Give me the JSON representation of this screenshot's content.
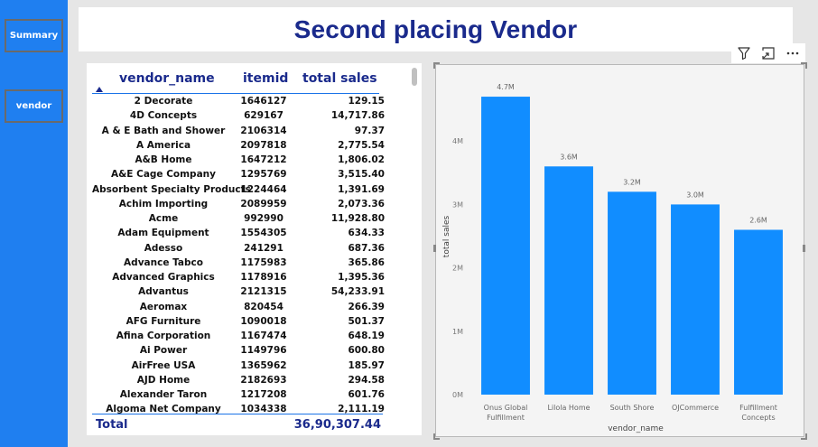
{
  "sidebar": {
    "buttons": [
      {
        "label": "Summary"
      },
      {
        "label": "vendor"
      }
    ]
  },
  "page_title": "Second placing Vendor",
  "table": {
    "columns": [
      "vendor_name",
      "itemid",
      "total sales"
    ],
    "rows": [
      [
        "2 Decorate",
        "1646127",
        "129.15"
      ],
      [
        "4D Concepts",
        "629167",
        "14,717.86"
      ],
      [
        "A & E Bath and Shower",
        "2106314",
        "97.37"
      ],
      [
        "A America",
        "2097818",
        "2,775.54"
      ],
      [
        "A&B Home",
        "1647212",
        "1,806.02"
      ],
      [
        "A&E Cage Company",
        "1295769",
        "3,515.40"
      ],
      [
        "Absorbent Specialty Products",
        "1224464",
        "1,391.69"
      ],
      [
        "Achim Importing",
        "2089959",
        "2,073.36"
      ],
      [
        "Acme",
        "992990",
        "11,928.80"
      ],
      [
        "Adam Equipment",
        "1554305",
        "634.33"
      ],
      [
        "Adesso",
        "241291",
        "687.36"
      ],
      [
        "Advance Tabco",
        "1175983",
        "365.86"
      ],
      [
        "Advanced Graphics",
        "1178916",
        "1,395.36"
      ],
      [
        "Advantus",
        "2121315",
        "54,233.91"
      ],
      [
        "Aeromax",
        "820454",
        "266.39"
      ],
      [
        "AFG Furniture",
        "1090018",
        "501.37"
      ],
      [
        "Afina Corporation",
        "1167474",
        "648.19"
      ],
      [
        "Ai Power",
        "1149796",
        "600.80"
      ],
      [
        "AirFree USA",
        "1365962",
        "185.97"
      ],
      [
        "AJD Home",
        "2182693",
        "294.58"
      ],
      [
        "Alexander Taron",
        "1217208",
        "601.76"
      ],
      [
        "Algoma Net Company",
        "1034338",
        "2,111.19"
      ]
    ],
    "total_label": "Total",
    "total_value": "36,90,307.44"
  },
  "toolbar": {
    "icons": [
      "filter-icon",
      "focus-mode-icon",
      "more-options-icon"
    ]
  },
  "chart_data": {
    "type": "bar",
    "categories": [
      "Onus Global Fulfillment",
      "Lilola Home",
      "South Shore",
      "OJCommerce",
      "Fulfillment Concepts"
    ],
    "category_lines": [
      [
        "Onus Global",
        "Fulfillment"
      ],
      [
        "Lilola Home"
      ],
      [
        "South Shore"
      ],
      [
        "OJCommerce"
      ],
      [
        "Fulfillment",
        "Concepts"
      ]
    ],
    "values": [
      4700000,
      3600000,
      3200000,
      3000000,
      2600000
    ],
    "data_labels": [
      "4.7M",
      "3.6M",
      "3.2M",
      "3.0M",
      "2.6M"
    ],
    "xlabel": "vendor_name",
    "ylabel": "total sales",
    "yticks": [
      0,
      1000000,
      2000000,
      3000000,
      4000000
    ],
    "ytick_labels": [
      "0M",
      "1M",
      "2M",
      "3M",
      "4M"
    ],
    "ylim": [
      0,
      5000000
    ],
    "grid": false,
    "bar_color": "#118dff"
  }
}
